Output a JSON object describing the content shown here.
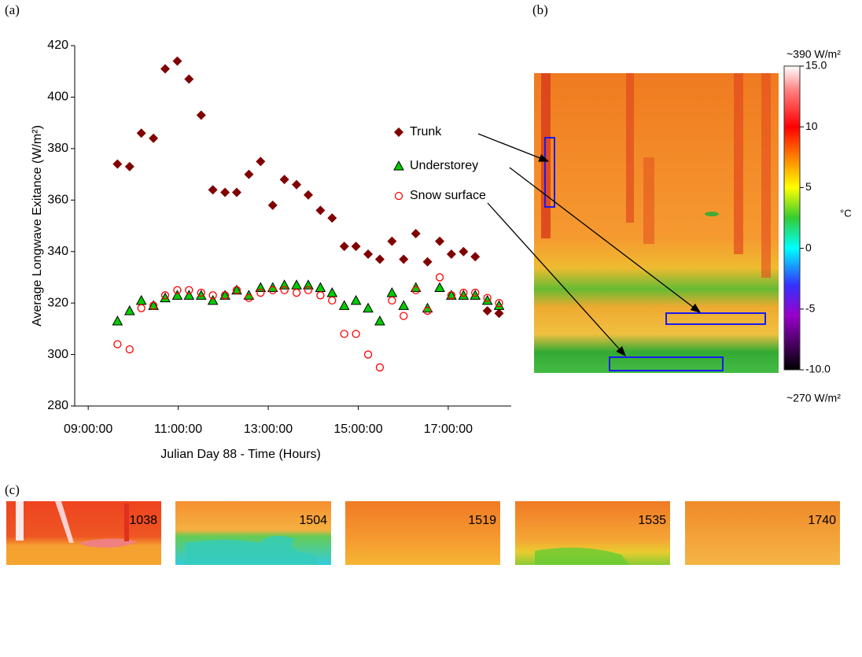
{
  "panel_labels": [
    "(a)",
    "(b)",
    "(c)"
  ],
  "chart_data": {
    "type": "scatter",
    "xlabel": "Julian Day 88 - Time (Hours)",
    "ylabel": "Average Longwave Exitance (W/m²)",
    "xlim": [
      8.7,
      18.4
    ],
    "ylim": [
      280,
      420
    ],
    "xticks": [
      {
        "value": 9,
        "label": "09:00:00"
      },
      {
        "value": 11,
        "label": "11:00:00"
      },
      {
        "value": 13,
        "label": "13:00:00"
      },
      {
        "value": 15,
        "label": "15:00:00"
      },
      {
        "value": 17,
        "label": "17:00:00"
      }
    ],
    "yticks": [
      280,
      300,
      320,
      340,
      360,
      380,
      400,
      420
    ],
    "x": [
      9.65,
      9.92,
      10.18,
      10.45,
      10.71,
      10.98,
      11.24,
      11.51,
      11.77,
      12.04,
      12.3,
      12.57,
      12.83,
      13.1,
      13.36,
      13.63,
      13.89,
      14.16,
      14.42,
      14.69,
      14.95,
      15.22,
      15.48,
      15.75,
      16.01,
      16.28,
      16.54,
      16.81,
      17.07,
      17.34,
      17.6,
      17.87,
      18.13
    ],
    "series": [
      {
        "name": "Trunk",
        "color": "#800000",
        "marker": "diamond",
        "values": [
          374,
          373,
          386,
          384,
          411,
          414,
          407,
          393,
          364,
          363,
          363,
          370,
          375,
          358,
          368,
          366,
          362,
          356,
          353,
          342,
          342,
          339,
          337,
          344,
          337,
          347,
          336,
          344,
          339,
          340,
          338,
          317,
          316
        ]
      },
      {
        "name": "Understorey",
        "color": "#00cc00",
        "marker": "triangle",
        "values": [
          313,
          317,
          321,
          319,
          322,
          323,
          323,
          323,
          321,
          323,
          325,
          323,
          326,
          326,
          327,
          327,
          327,
          326,
          324,
          319,
          321,
          318,
          313,
          324,
          319,
          326,
          318,
          326,
          323,
          323,
          323,
          321,
          319
        ]
      },
      {
        "name": "Snow surface",
        "color": "#ff0000",
        "marker": "circle",
        "values": [
          304,
          302,
          318,
          319,
          323,
          325,
          325,
          324,
          323,
          323,
          325,
          322,
          324,
          325,
          325,
          324,
          325,
          323,
          321,
          308,
          308,
          300,
          295,
          321,
          315,
          325,
          317,
          330,
          323,
          324,
          324,
          322,
          320
        ]
      }
    ]
  },
  "colorbar": {
    "unit": "°C",
    "top_label": "~390 W/m²",
    "bottom_label": "~270 W/m²",
    "range": [
      -10,
      15
    ],
    "ticks": [
      {
        "value": 15,
        "label": "15.0"
      },
      10,
      5,
      0,
      -5,
      {
        "value": -10,
        "label": "-10.0"
      }
    ]
  },
  "thumbnails": [
    "1038",
    "1504",
    "1519",
    "1535",
    "1740"
  ]
}
